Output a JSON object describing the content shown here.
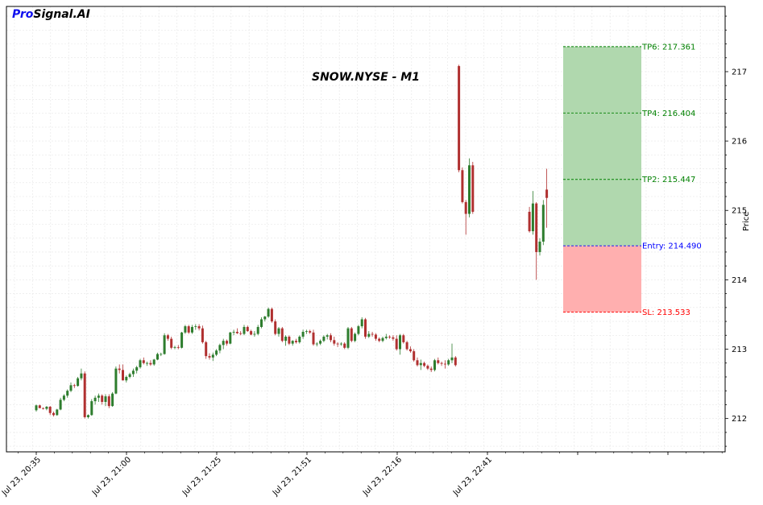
{
  "brand": {
    "pro": "Pro",
    "rest": "Signal.AI"
  },
  "chart_data": {
    "type": "candlestick",
    "title": "SNOW.NYSE - M1",
    "ylabel": "Price",
    "ylim": [
      211.52,
      217.94
    ],
    "yticks": [
      212,
      213,
      214,
      215,
      216,
      217
    ],
    "xticks": [
      "Jul 23, 20:35",
      "Jul 23, 21:00",
      "Jul 23, 21:25",
      "Jul 23, 21:51",
      "Jul 23, 22:16",
      "Jul 23, 22:41",
      "",
      ""
    ],
    "candles": [
      [
        212.12,
        212.2,
        212.1,
        212.19
      ],
      [
        212.19,
        212.2,
        212.15,
        212.15
      ],
      [
        212.15,
        212.16,
        212.13,
        212.14
      ],
      [
        212.14,
        212.18,
        212.12,
        212.17
      ],
      [
        212.17,
        212.18,
        212.05,
        212.08
      ],
      [
        212.08,
        212.1,
        212.03,
        212.05
      ],
      [
        212.05,
        212.14,
        212.04,
        212.13
      ],
      [
        212.13,
        212.3,
        212.12,
        212.27
      ],
      [
        212.27,
        212.35,
        212.25,
        212.33
      ],
      [
        212.33,
        212.42,
        212.3,
        212.4
      ],
      [
        212.4,
        212.52,
        212.38,
        212.48
      ],
      [
        212.48,
        212.5,
        212.44,
        212.47
      ],
      [
        212.47,
        212.6,
        212.46,
        212.58
      ],
      [
        212.58,
        212.72,
        212.55,
        212.65
      ],
      [
        212.65,
        212.68,
        212.0,
        212.02
      ],
      [
        212.02,
        212.06,
        212.0,
        212.05
      ],
      [
        212.05,
        212.28,
        212.04,
        212.25
      ],
      [
        212.25,
        212.33,
        212.2,
        212.3
      ],
      [
        212.3,
        212.36,
        212.24,
        212.33
      ],
      [
        212.33,
        212.35,
        212.2,
        212.24
      ],
      [
        212.24,
        212.35,
        212.18,
        212.32
      ],
      [
        212.32,
        212.35,
        212.15,
        212.18
      ],
      [
        212.18,
        212.38,
        212.17,
        212.36
      ],
      [
        212.36,
        212.75,
        212.35,
        212.72
      ],
      [
        212.72,
        212.78,
        212.65,
        212.7
      ],
      [
        212.7,
        212.78,
        212.55,
        212.55
      ],
      [
        212.55,
        212.62,
        212.52,
        212.6
      ],
      [
        212.6,
        212.66,
        212.58,
        212.64
      ],
      [
        212.64,
        212.72,
        212.6,
        212.69
      ],
      [
        212.69,
        212.76,
        212.65,
        212.74
      ],
      [
        212.74,
        212.86,
        212.72,
        212.84
      ],
      [
        212.84,
        212.88,
        212.78,
        212.8
      ],
      [
        212.8,
        212.82,
        212.76,
        212.8
      ],
      [
        212.8,
        212.84,
        212.76,
        212.78
      ],
      [
        212.78,
        212.86,
        212.76,
        212.85
      ],
      [
        212.85,
        212.95,
        212.84,
        212.93
      ],
      [
        212.93,
        212.95,
        212.9,
        212.93
      ],
      [
        212.93,
        213.23,
        212.92,
        213.2
      ],
      [
        213.2,
        213.22,
        213.12,
        213.15
      ],
      [
        213.15,
        213.18,
        213.0,
        213.02
      ],
      [
        213.02,
        213.05,
        213.0,
        213.03
      ],
      [
        213.03,
        213.06,
        213.0,
        213.02
      ],
      [
        213.02,
        213.25,
        213.01,
        213.24
      ],
      [
        213.24,
        213.35,
        213.22,
        213.33
      ],
      [
        213.33,
        213.35,
        213.22,
        213.24
      ],
      [
        213.24,
        213.35,
        213.22,
        213.32
      ],
      [
        213.32,
        213.36,
        213.28,
        213.33
      ],
      [
        213.33,
        213.36,
        213.27,
        213.3
      ],
      [
        213.3,
        213.34,
        213.08,
        213.1
      ],
      [
        213.1,
        213.12,
        212.86,
        212.9
      ],
      [
        212.9,
        212.94,
        212.85,
        212.88
      ],
      [
        212.88,
        212.95,
        212.83,
        212.92
      ],
      [
        212.92,
        213.0,
        212.9,
        212.98
      ],
      [
        212.98,
        213.08,
        212.94,
        213.06
      ],
      [
        213.06,
        213.15,
        213.0,
        213.12
      ],
      [
        213.12,
        213.14,
        213.05,
        213.08
      ],
      [
        213.08,
        213.25,
        213.07,
        213.24
      ],
      [
        213.24,
        213.28,
        213.2,
        213.25
      ],
      [
        213.25,
        213.3,
        213.22,
        213.23
      ],
      [
        213.23,
        213.26,
        213.2,
        213.22
      ],
      [
        213.22,
        213.35,
        213.2,
        213.32
      ],
      [
        213.32,
        213.34,
        213.25,
        213.26
      ],
      [
        213.26,
        213.28,
        213.2,
        213.21
      ],
      [
        213.21,
        213.26,
        213.18,
        213.22
      ],
      [
        213.22,
        213.35,
        213.2,
        213.32
      ],
      [
        213.32,
        213.46,
        213.3,
        213.43
      ],
      [
        213.43,
        213.48,
        213.4,
        213.47
      ],
      [
        213.47,
        213.6,
        213.45,
        213.58
      ],
      [
        213.58,
        213.6,
        213.38,
        213.4
      ],
      [
        213.4,
        213.43,
        213.2,
        213.22
      ],
      [
        213.22,
        213.32,
        213.18,
        213.3
      ],
      [
        213.3,
        213.32,
        213.1,
        213.12
      ],
      [
        213.12,
        213.2,
        213.05,
        213.18
      ],
      [
        213.18,
        213.2,
        213.06,
        213.08
      ],
      [
        213.08,
        213.13,
        213.05,
        213.12
      ],
      [
        213.12,
        213.15,
        213.08,
        213.1
      ],
      [
        213.1,
        213.2,
        213.08,
        213.18
      ],
      [
        213.18,
        213.28,
        213.15,
        213.25
      ],
      [
        213.25,
        213.28,
        213.22,
        213.26
      ],
      [
        213.26,
        213.28,
        213.22,
        213.24
      ],
      [
        213.24,
        213.28,
        213.05,
        213.07
      ],
      [
        213.07,
        213.1,
        213.04,
        213.08
      ],
      [
        213.08,
        213.14,
        213.06,
        213.12
      ],
      [
        213.12,
        213.2,
        213.1,
        213.18
      ],
      [
        213.18,
        213.22,
        213.14,
        213.2
      ],
      [
        213.2,
        213.23,
        213.1,
        213.13
      ],
      [
        213.13,
        213.18,
        213.05,
        213.08
      ],
      [
        213.08,
        213.1,
        213.03,
        213.07
      ],
      [
        213.07,
        213.1,
        213.05,
        213.08
      ],
      [
        213.08,
        213.1,
        213.0,
        213.02
      ],
      [
        213.02,
        213.32,
        213.0,
        213.3
      ],
      [
        213.3,
        213.32,
        213.1,
        213.12
      ],
      [
        213.12,
        213.24,
        213.1,
        213.22
      ],
      [
        213.22,
        213.35,
        213.2,
        213.33
      ],
      [
        213.33,
        213.46,
        213.3,
        213.43
      ],
      [
        213.43,
        213.45,
        213.15,
        213.18
      ],
      [
        213.18,
        213.26,
        213.16,
        213.22
      ],
      [
        213.22,
        213.25,
        213.18,
        213.21
      ],
      [
        213.21,
        213.23,
        213.12,
        213.15
      ],
      [
        213.15,
        213.17,
        213.1,
        213.12
      ],
      [
        213.12,
        213.18,
        213.1,
        213.16
      ],
      [
        213.16,
        213.22,
        213.14,
        213.18
      ],
      [
        213.18,
        213.2,
        213.15,
        213.17
      ],
      [
        213.17,
        213.2,
        213.12,
        213.15
      ],
      [
        213.15,
        213.2,
        212.98,
        213.0
      ],
      [
        213.0,
        213.22,
        212.92,
        213.2
      ],
      [
        213.2,
        213.22,
        213.08,
        213.1
      ],
      [
        213.1,
        213.12,
        212.98,
        213.0
      ],
      [
        213.0,
        213.04,
        212.95,
        212.97
      ],
      [
        212.97,
        213.0,
        212.82,
        212.84
      ],
      [
        212.84,
        212.88,
        212.75,
        212.77
      ],
      [
        212.77,
        212.85,
        212.7,
        212.8
      ],
      [
        212.8,
        212.82,
        212.74,
        212.76
      ],
      [
        212.76,
        212.78,
        212.7,
        212.72
      ],
      [
        212.72,
        212.75,
        212.67,
        212.7
      ],
      [
        212.7,
        212.86,
        212.68,
        212.84
      ],
      [
        212.84,
        212.88,
        212.78,
        212.8
      ],
      [
        212.8,
        212.82,
        212.76,
        212.79
      ],
      [
        212.79,
        212.84,
        212.72,
        212.78
      ],
      [
        212.78,
        212.86,
        212.76,
        212.84
      ],
      [
        212.84,
        213.08,
        212.8,
        212.88
      ],
      [
        212.88,
        212.9,
        212.75,
        212.77
      ],
      [
        217.08,
        217.1,
        215.55,
        215.58
      ],
      [
        215.58,
        215.62,
        215.1,
        215.12
      ],
      [
        215.12,
        215.15,
        214.65,
        214.95
      ],
      [
        214.95,
        215.75,
        214.9,
        215.65
      ],
      [
        215.65,
        215.7,
        214.95,
        214.98
      ],
      [
        214.98,
        215.05,
        214.68,
        214.7
      ],
      [
        214.7,
        215.28,
        214.65,
        215.1
      ],
      [
        215.1,
        215.12,
        214.0,
        214.4
      ],
      [
        214.4,
        214.6,
        214.35,
        214.55
      ],
      [
        214.55,
        215.15,
        214.5,
        215.08
      ],
      [
        215.3,
        215.6,
        214.75,
        215.18
      ]
    ],
    "levels": [
      {
        "label": "TP6: 217.361",
        "price": 217.361,
        "color": "#008000"
      },
      {
        "label": "TP4: 216.404",
        "price": 216.404,
        "color": "#008000"
      },
      {
        "label": "TP2: 215.447",
        "price": 215.447,
        "color": "#008000"
      },
      {
        "label": "Entry: 214.490",
        "price": 214.49,
        "color": "#0000ff"
      },
      {
        "label": "SL: 213.533",
        "price": 213.533,
        "color": "#ff0000"
      }
    ],
    "tp_zone": [
      214.49,
      217.361
    ],
    "sl_zone": [
      213.533,
      214.49
    ],
    "colors": {
      "up": "#2e7d2e",
      "down": "#b03030",
      "tp_fill": "#b0d8ae",
      "sl_fill": "#ffafaf"
    },
    "grid": true
  }
}
